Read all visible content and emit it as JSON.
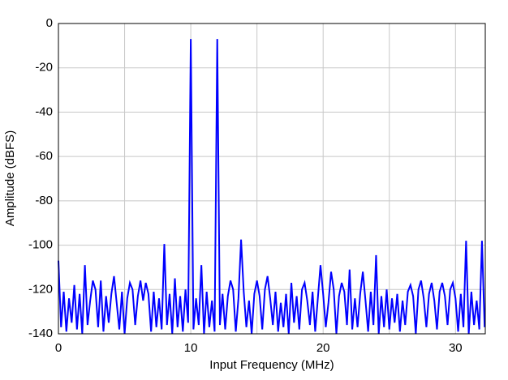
{
  "chart_data": {
    "type": "line",
    "x_label": "Input Frequency (MHz)",
    "y_label": "Amplitude (dBFS)",
    "x": [
      0,
      0.2,
      0.4,
      0.6,
      0.8,
      1,
      1.2,
      1.4,
      1.6,
      1.8,
      2,
      2.2,
      2.4,
      2.6,
      2.8,
      3,
      3.2,
      3.4,
      3.6,
      3.8,
      4,
      4.2,
      4.4,
      4.6,
      4.8,
      5,
      5.2,
      5.4,
      5.6,
      5.8,
      6,
      6.2,
      6.4,
      6.6,
      6.8,
      7,
      7.2,
      7.4,
      7.6,
      7.8,
      8,
      8.2,
      8.4,
      8.6,
      8.8,
      9,
      9.2,
      9.4,
      9.6,
      9.8,
      10,
      10.2,
      10.4,
      10.6,
      10.8,
      11,
      11.2,
      11.4,
      11.6,
      11.8,
      12,
      12.2,
      12.4,
      12.6,
      12.8,
      13,
      13.2,
      13.4,
      13.6,
      13.8,
      14,
      14.2,
      14.4,
      14.6,
      14.8,
      15,
      15.2,
      15.4,
      15.6,
      15.8,
      16,
      16.2,
      16.4,
      16.6,
      16.8,
      17,
      17.2,
      17.4,
      17.6,
      17.8,
      18,
      18.2,
      18.4,
      18.6,
      18.8,
      19,
      19.2,
      19.4,
      19.6,
      19.8,
      20,
      20.2,
      20.4,
      20.6,
      20.8,
      21,
      21.2,
      21.4,
      21.6,
      21.8,
      22,
      22.2,
      22.4,
      22.6,
      22.8,
      23,
      23.2,
      23.4,
      23.6,
      23.8,
      24,
      24.2,
      24.4,
      24.6,
      24.8,
      25,
      25.2,
      25.4,
      25.6,
      25.8,
      26,
      26.2,
      26.4,
      26.6,
      26.8,
      27,
      27.2,
      27.4,
      27.6,
      27.8,
      28,
      28.2,
      28.4,
      28.6,
      28.8,
      29,
      29.2,
      29.4,
      29.6,
      29.8,
      30,
      30.2,
      30.4,
      30.6,
      30.8,
      31,
      31.2,
      31.4,
      31.6,
      31.8,
      32,
      32.2
    ],
    "values": [
      -107,
      -137,
      -121,
      -139,
      -124,
      -135,
      -118,
      -138,
      -122,
      -140,
      -109,
      -136,
      -125,
      -116,
      -120,
      -137,
      -116,
      -139,
      -123,
      -135,
      -122,
      -114,
      -126,
      -138,
      -121,
      -140,
      -124,
      -117,
      -120,
      -136,
      -123,
      -116,
      -125,
      -117,
      -122,
      -139,
      -121,
      -137,
      -124,
      -138,
      -99.5,
      -136,
      -122,
      -140,
      -115,
      -137,
      -123,
      -139,
      -120,
      -135,
      -7,
      -138,
      -124,
      -136,
      -109,
      -140,
      -121,
      -137,
      -125,
      -139,
      -7,
      -136,
      -122,
      -138,
      -123,
      -116,
      -120,
      -139,
      -124,
      -97.5,
      -121,
      -137,
      -125,
      -140,
      -122,
      -116,
      -123,
      -138,
      -120,
      -114,
      -124,
      -136,
      -121,
      -139,
      -126,
      -137,
      -122,
      -140,
      -117,
      -135,
      -123,
      -138,
      -120,
      -117,
      -125,
      -136,
      -121,
      -139,
      -124,
      -109,
      -122,
      -137,
      -126,
      -112,
      -120,
      -140,
      -123,
      -117,
      -121,
      -136,
      -111,
      -138,
      -124,
      -137,
      -122,
      -112,
      -125,
      -139,
      -121,
      -136,
      -104.5,
      -140,
      -123,
      -137,
      -120,
      -138,
      -124,
      -135,
      -122,
      -139,
      -125,
      -136,
      -121,
      -118,
      -123,
      -140,
      -120,
      -116,
      -124,
      -137,
      -122,
      -117,
      -125,
      -138,
      -121,
      -117,
      -123,
      -136,
      -120,
      -117,
      -124,
      -139,
      -122,
      -137,
      -98,
      -140,
      -121,
      -136,
      -125,
      -138,
      -98,
      -137
    ],
    "color": "#0000ff",
    "xlim": [
      0,
      32.25
    ],
    "xticks": [
      0,
      10,
      20,
      30
    ],
    "x_minor_grid": [
      5,
      15,
      25
    ],
    "ylim": [
      -140,
      0
    ],
    "yticks": [
      0,
      -20,
      -40,
      -60,
      -80,
      -100,
      -120,
      -140
    ],
    "grid": true
  }
}
